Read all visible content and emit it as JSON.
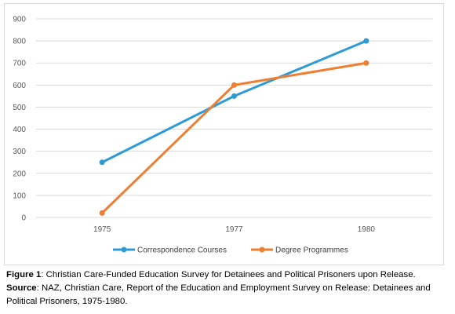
{
  "chart_data": {
    "type": "line",
    "categories": [
      "1975",
      "1977",
      "1980"
    ],
    "series": [
      {
        "name": "Correspondence Courses",
        "values": [
          250,
          550,
          800
        ],
        "color": "#2e9bd6"
      },
      {
        "name": "Degree Programmes",
        "values": [
          20,
          600,
          700
        ],
        "color": "#f07e32"
      }
    ],
    "ylim": [
      0,
      900
    ],
    "yticks": [
      0,
      100,
      200,
      300,
      400,
      500,
      600,
      700,
      800,
      900
    ],
    "grid": true,
    "legend_position": "bottom"
  },
  "caption": {
    "figure_label": "Figure 1",
    "figure_text": ": Christian Care-Funded Education Survey for Detainees and Political Prisoners upon Release.",
    "source_label": "Source",
    "source_text": ": NAZ, Christian Care, Report of the Education and Employment Survey on Release: Detainees and Political Prisoners, 1975-1980."
  }
}
